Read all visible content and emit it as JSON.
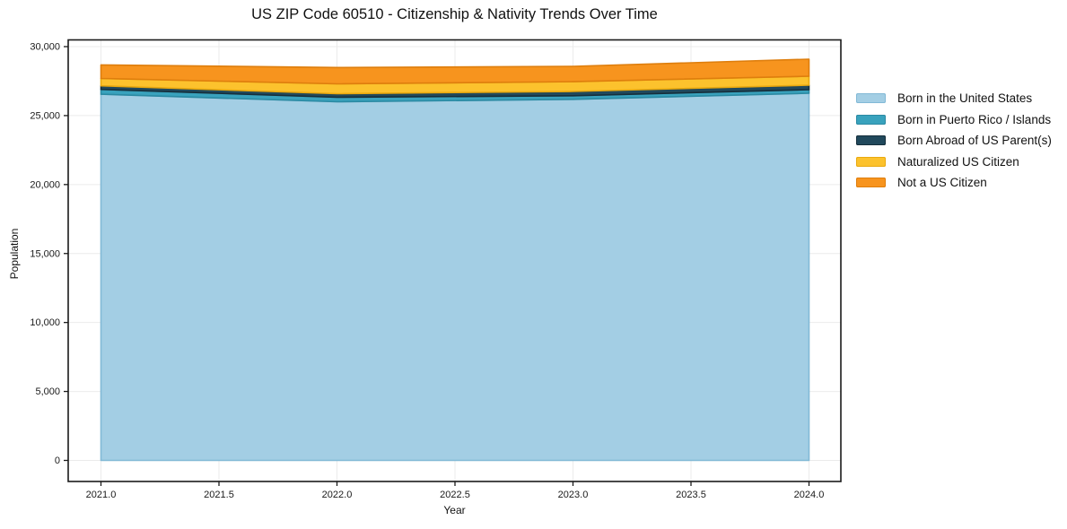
{
  "chart_data": {
    "type": "area",
    "stacked": true,
    "title": "US ZIP Code 60510 - Citizenship & Nativity Trends Over Time",
    "xlabel": "Year",
    "ylabel": "Population",
    "x": [
      2021,
      2022,
      2023,
      2024
    ],
    "series": [
      {
        "name": "Born in the United States",
        "color": "#a3cee4",
        "edge_color": "#82b9d6",
        "values": [
          26550,
          26000,
          26180,
          26620
        ]
      },
      {
        "name": "Born in Puerto Rico / Islands",
        "color": "#39a2bd",
        "edge_color": "#2b8aa3",
        "values": [
          350,
          325,
          260,
          260
        ]
      },
      {
        "name": "Born Abroad of US Parent(s)",
        "color": "#21495c",
        "edge_color": "#162f3c",
        "values": [
          260,
          260,
          310,
          325
        ]
      },
      {
        "name": "Naturalized US Citizen",
        "color": "#fcc22d",
        "edge_color": "#e9a90f",
        "values": [
          535,
          715,
          710,
          650
        ]
      },
      {
        "name": "Not a US Citizen",
        "color": "#f7941e",
        "edge_color": "#de7e0d",
        "values": [
          980,
          1185,
          1110,
          1235
        ]
      }
    ],
    "ylim": [
      0,
      30000
    ],
    "xticks": {
      "values": [
        2021.0,
        2021.5,
        2022.0,
        2022.5,
        2023.0,
        2023.5,
        2024.0
      ],
      "labels": [
        "2021.0",
        "2021.5",
        "2022.0",
        "2022.5",
        "2023.0",
        "2023.5",
        "2024.0"
      ]
    },
    "yticks": {
      "values": [
        0,
        5000,
        10000,
        15000,
        20000,
        25000,
        30000
      ],
      "labels": [
        "0",
        "5,000",
        "10,000",
        "15,000",
        "20,000",
        "25,000",
        "30,000"
      ]
    },
    "grid": true,
    "legend_position": "right-outside",
    "colors": {
      "grid": "#ebebeb",
      "spine": "#1a1a1a",
      "text": "#111111",
      "background": "#ffffff"
    }
  }
}
